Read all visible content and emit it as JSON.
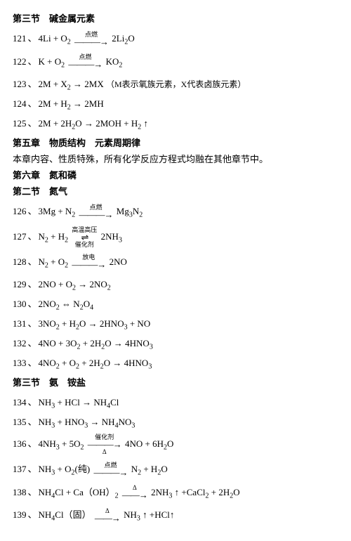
{
  "sections": {
    "s3_title": "第三节　碱金属元素",
    "ch5_title": "第五章　物质结构　元素周期律",
    "ch5_note": "本章内容、性质特殊，所有化学反应方程式均融在其他章节中。",
    "ch6_title": "第六章　氮和磷",
    "ch6_s2_title": "第二节　氮气",
    "ch6_s3_title": "第三节　氨　铵盐"
  },
  "labels": {
    "ignite": "点燃",
    "hightemp": "高温高压",
    "catalyst": "催化剂",
    "discharge": "放电",
    "delta": "Δ"
  },
  "equations": {
    "e121": {
      "num": "121",
      "lhs_a": "4Li + O",
      "lhs_b": "2",
      "rhs_a": "2Li",
      "rhs_b": "2",
      "rhs_c": "O"
    },
    "e122": {
      "num": "122",
      "lhs_a": "K + O",
      "lhs_b": "2",
      "rhs_a": "KO",
      "rhs_b": "2"
    },
    "e123": {
      "num": "123",
      "lhs": "2M + X",
      "lhs_sub": "2",
      "rhs": "2MX",
      "note": "（M表示氧族元素，X代表卤族元素）"
    },
    "e124": {
      "num": "124",
      "lhs": "2M + H",
      "lhs_sub": "2",
      "rhs": "2MH"
    },
    "e125": {
      "num": "125",
      "lhs_a": "2M + 2H",
      "lhs_b": "2",
      "lhs_c": "O",
      "rhs_a": "2MOH + H",
      "rhs_b": "2",
      "rhs_c": " ↑"
    },
    "e126": {
      "num": "126",
      "lhs_a": "3Mg + N",
      "lhs_b": "2",
      "rhs_a": "Mg",
      "rhs_b": "3",
      "rhs_c": "N",
      "rhs_d": "2"
    },
    "e127": {
      "num": "127",
      "lhs_a": "N",
      "lhs_b": "2",
      "lhs_c": " + H",
      "lhs_d": "2",
      "rhs_a": "2NH",
      "rhs_b": "3"
    },
    "e128": {
      "num": "128",
      "lhs_a": "N",
      "lhs_b": "2",
      "lhs_c": " + O",
      "lhs_d": "2",
      "rhs": "2NO"
    },
    "e129": {
      "num": "129",
      "lhs_a": "2NO + O",
      "lhs_b": "2",
      "rhs_a": "2NO",
      "rhs_b": "2"
    },
    "e130": {
      "num": "130",
      "lhs_a": "2NO",
      "lhs_b": "2",
      "rhs_a": "N",
      "rhs_b": "2",
      "rhs_c": "O",
      "rhs_d": "4"
    },
    "e131": {
      "num": "131",
      "lhs_a": "3NO",
      "lhs_b": "2",
      "lhs_c": " + H",
      "lhs_d": "2",
      "lhs_e": "O",
      "rhs_a": "2HNO",
      "rhs_b": "3",
      "rhs_c": " + NO"
    },
    "e132": {
      "num": "132",
      "lhs_a": "4NO + 3O",
      "lhs_b": "2",
      "lhs_c": " + 2H",
      "lhs_d": "2",
      "lhs_e": "O",
      "rhs_a": "4HNO",
      "rhs_b": "3"
    },
    "e133": {
      "num": "133",
      "lhs_a": "4NO",
      "lhs_b": "2",
      "lhs_c": " + O",
      "lhs_d": "2",
      "lhs_e": " + 2H",
      "lhs_f": "2",
      "lhs_g": "O",
      "rhs_a": "4HNO",
      "rhs_b": "3"
    },
    "e134": {
      "num": "134",
      "lhs_a": "NH",
      "lhs_b": "3",
      "lhs_c": " + HCl",
      "rhs_a": "NH",
      "rhs_b": "4",
      "rhs_c": "Cl"
    },
    "e135": {
      "num": "135",
      "lhs_a": "NH",
      "lhs_b": "3",
      "lhs_c": " + HNO",
      "lhs_d": "3",
      "rhs_a": "NH",
      "rhs_b": "4",
      "rhs_c": "NO",
      "rhs_d": "3"
    },
    "e136": {
      "num": "136",
      "lhs_a": "4NH",
      "lhs_b": "3",
      "lhs_c": " + 5O",
      "lhs_d": "2",
      "rhs_a": "4NO + 6H",
      "rhs_b": "2",
      "rhs_c": "O"
    },
    "e137": {
      "num": "137",
      "lhs_a": "NH",
      "lhs_b": "3",
      "lhs_c": " + O",
      "lhs_d": "2",
      "lhs_e": "(纯)",
      "rhs_a": "N",
      "rhs_b": "2",
      "rhs_c": " + H",
      "rhs_d": "2",
      "rhs_e": "O"
    },
    "e138": {
      "num": "138",
      "lhs_a": "NH",
      "lhs_b": "4",
      "lhs_c": "Cl + Ca（OH）",
      "lhs_d": "2",
      "rhs_a": "2NH",
      "rhs_b": "3",
      "rhs_c": " ↑ +CaCl",
      "rhs_d": "2",
      "rhs_e": " + 2H",
      "rhs_f": "2",
      "rhs_g": "O"
    },
    "e139": {
      "num": "139",
      "lhs_a": "NH",
      "lhs_b": "4",
      "lhs_c": "Cl（固）",
      "rhs_a": "NH",
      "rhs_b": "3",
      "rhs_c": " ↑ +HCl↑"
    }
  }
}
